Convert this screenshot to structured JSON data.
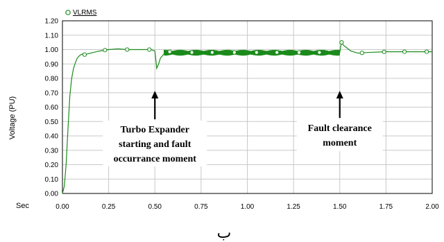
{
  "chart_data": {
    "type": "line",
    "xlabel": "Sec",
    "ylabel": "Voltage (PU)",
    "xlim": [
      0,
      2
    ],
    "ylim": [
      0,
      1.2
    ],
    "x_ticks": [
      "0.00",
      "0.25",
      "0.50",
      "0.75",
      "1.00",
      "1.25",
      "1.50",
      "1.75",
      "2.00"
    ],
    "y_ticks": [
      "0.00",
      "0.10",
      "0.20",
      "0.30",
      "0.40",
      "0.50",
      "0.60",
      "0.70",
      "0.80",
      "0.90",
      "1.00",
      "1.10",
      "1.20"
    ],
    "grid": true,
    "legend_position": "top-left",
    "series": [
      {
        "name": "VLRMS",
        "color": "#1a8a1a",
        "marker": "circle",
        "x": [
          0.0,
          0.01,
          0.02,
          0.03,
          0.04,
          0.05,
          0.06,
          0.07,
          0.08,
          0.09,
          0.1,
          0.11,
          0.12,
          0.15,
          0.2,
          0.25,
          0.3,
          0.35,
          0.4,
          0.45,
          0.48,
          0.5,
          0.505,
          0.51,
          0.52,
          0.53,
          0.55,
          0.58,
          0.62,
          0.7,
          0.8,
          0.9,
          1.0,
          1.1,
          1.2,
          1.3,
          1.4,
          1.5,
          1.505,
          1.51,
          1.52,
          1.54,
          1.56,
          1.6,
          1.65,
          1.75,
          1.85,
          2.0
        ],
        "y": [
          0.0,
          0.05,
          0.2,
          0.45,
          0.68,
          0.8,
          0.87,
          0.91,
          0.94,
          0.955,
          0.965,
          0.97,
          0.965,
          0.975,
          0.99,
          1.0,
          1.005,
          1.0,
          1.0,
          1.0,
          1.0,
          0.99,
          0.93,
          0.87,
          0.9,
          0.94,
          0.97,
          0.985,
          0.98,
          0.98,
          0.98,
          0.98,
          0.98,
          0.98,
          0.98,
          0.98,
          0.98,
          0.98,
          1.02,
          1.05,
          1.03,
          1.01,
          0.99,
          0.975,
          0.98,
          0.985,
          0.985,
          0.985
        ]
      }
    ],
    "oscillation": {
      "from": 0.55,
      "to": 1.5,
      "center": 0.978,
      "amplitude": 0.02
    },
    "markers_x": [
      0.12,
      0.23,
      0.35,
      0.47,
      0.58,
      0.7,
      0.81,
      0.93,
      1.05,
      1.16,
      1.28,
      1.39,
      1.51,
      1.62,
      1.74,
      1.85,
      1.97
    ],
    "annotations": [
      {
        "lines": [
          "Turbo Expander",
          "starting and fault",
          "occurrance moment"
        ],
        "x": 0.5
      },
      {
        "lines": [
          "Fault clearance",
          "moment"
        ],
        "x": 1.5
      }
    ],
    "caption": "ب"
  }
}
